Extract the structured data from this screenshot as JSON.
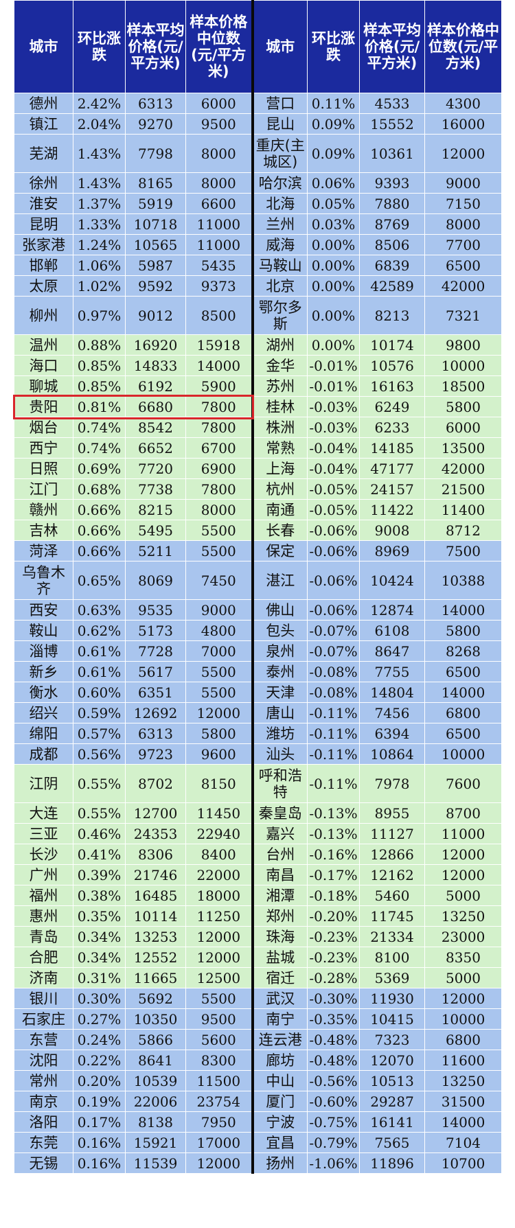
{
  "headers": [
    "城市",
    "环比涨跌",
    "样本平均价格(元/平方米)",
    "样本价格中位数(元/平方米)",
    "城市",
    "环比涨跌",
    "样本平均价格(元/平方米)",
    "样本价格中位数(元/平方米)"
  ],
  "colors": {
    "header": "#1b2a9e",
    "band_blue": "#a9c5ee",
    "band_green": "#d3f1cb",
    "highlight": "#d9262b"
  },
  "highlighted_city": "贵阳",
  "rows": [
    {
      "band": "blue",
      "l": [
        "德州",
        "2.42%",
        "6313",
        "6000"
      ],
      "r": [
        "营口",
        "0.11%",
        "4533",
        "4300"
      ]
    },
    {
      "band": "blue",
      "l": [
        "镇江",
        "2.04%",
        "9270",
        "9500"
      ],
      "r": [
        "昆山",
        "0.09%",
        "15552",
        "16000"
      ]
    },
    {
      "band": "blue",
      "tall": true,
      "l": [
        "芜湖",
        "1.43%",
        "7798",
        "8000"
      ],
      "r": [
        "重庆(主城区)",
        "0.09%",
        "10361",
        "12000"
      ]
    },
    {
      "band": "blue",
      "l": [
        "徐州",
        "1.43%",
        "8165",
        "8000"
      ],
      "r": [
        "哈尔滨",
        "0.06%",
        "9393",
        "9000"
      ]
    },
    {
      "band": "blue",
      "l": [
        "淮安",
        "1.37%",
        "5919",
        "6600"
      ],
      "r": [
        "北海",
        "0.05%",
        "7880",
        "7150"
      ]
    },
    {
      "band": "blue",
      "l": [
        "昆明",
        "1.33%",
        "10718",
        "11000"
      ],
      "r": [
        "兰州",
        "0.03%",
        "8769",
        "8000"
      ]
    },
    {
      "band": "blue",
      "l": [
        "张家港",
        "1.24%",
        "10565",
        "11000"
      ],
      "r": [
        "威海",
        "0.00%",
        "8506",
        "7700"
      ]
    },
    {
      "band": "blue",
      "l": [
        "邯郸",
        "1.06%",
        "5987",
        "5435"
      ],
      "r": [
        "马鞍山",
        "0.00%",
        "6839",
        "6500"
      ]
    },
    {
      "band": "blue",
      "l": [
        "太原",
        "1.02%",
        "9592",
        "9373"
      ],
      "r": [
        "北京",
        "0.00%",
        "42589",
        "42000"
      ]
    },
    {
      "band": "blue",
      "tall": true,
      "l": [
        "柳州",
        "0.97%",
        "9012",
        "8500"
      ],
      "r": [
        "鄂尔多斯",
        "0.00%",
        "8213",
        "7321"
      ]
    },
    {
      "band": "green",
      "l": [
        "温州",
        "0.88%",
        "16920",
        "15918"
      ],
      "r": [
        "湖州",
        "0.00%",
        "10174",
        "9800"
      ]
    },
    {
      "band": "green",
      "l": [
        "海口",
        "0.85%",
        "14833",
        "14000"
      ],
      "r": [
        "金华",
        "-0.01%",
        "10576",
        "10000"
      ]
    },
    {
      "band": "green",
      "l": [
        "聊城",
        "0.85%",
        "6192",
        "5900"
      ],
      "r": [
        "苏州",
        "-0.01%",
        "16163",
        "18500"
      ]
    },
    {
      "band": "green",
      "l": [
        "贵阳",
        "0.81%",
        "6680",
        "7800"
      ],
      "r": [
        "桂林",
        "-0.03%",
        "6249",
        "5800"
      ]
    },
    {
      "band": "green",
      "l": [
        "烟台",
        "0.74%",
        "8542",
        "7800"
      ],
      "r": [
        "株洲",
        "-0.03%",
        "6233",
        "6000"
      ]
    },
    {
      "band": "green",
      "l": [
        "西宁",
        "0.74%",
        "6652",
        "6700"
      ],
      "r": [
        "常熟",
        "-0.04%",
        "14185",
        "13500"
      ]
    },
    {
      "band": "green",
      "l": [
        "日照",
        "0.69%",
        "7720",
        "6900"
      ],
      "r": [
        "上海",
        "-0.04%",
        "47177",
        "42000"
      ]
    },
    {
      "band": "green",
      "l": [
        "江门",
        "0.68%",
        "7738",
        "7800"
      ],
      "r": [
        "杭州",
        "-0.05%",
        "24157",
        "21500"
      ]
    },
    {
      "band": "green",
      "l": [
        "赣州",
        "0.66%",
        "8215",
        "8000"
      ],
      "r": [
        "南通",
        "-0.05%",
        "11422",
        "11400"
      ]
    },
    {
      "band": "green",
      "l": [
        "吉林",
        "0.66%",
        "5495",
        "5500"
      ],
      "r": [
        "长春",
        "-0.06%",
        "9008",
        "8712"
      ]
    },
    {
      "band": "blue",
      "l": [
        "菏泽",
        "0.66%",
        "5211",
        "5500"
      ],
      "r": [
        "保定",
        "-0.06%",
        "8969",
        "7500"
      ]
    },
    {
      "band": "blue",
      "tall": true,
      "l": [
        "乌鲁木齐",
        "0.65%",
        "8069",
        "7450"
      ],
      "r": [
        "湛江",
        "-0.06%",
        "10424",
        "10388"
      ]
    },
    {
      "band": "blue",
      "l": [
        "西安",
        "0.63%",
        "9535",
        "9000"
      ],
      "r": [
        "佛山",
        "-0.06%",
        "12874",
        "14000"
      ]
    },
    {
      "band": "blue",
      "l": [
        "鞍山",
        "0.62%",
        "5173",
        "4800"
      ],
      "r": [
        "包头",
        "-0.07%",
        "6108",
        "5800"
      ]
    },
    {
      "band": "blue",
      "l": [
        "淄博",
        "0.61%",
        "7728",
        "7000"
      ],
      "r": [
        "泉州",
        "-0.07%",
        "8647",
        "8268"
      ]
    },
    {
      "band": "blue",
      "l": [
        "新乡",
        "0.61%",
        "5617",
        "5500"
      ],
      "r": [
        "泰州",
        "-0.08%",
        "7755",
        "6500"
      ]
    },
    {
      "band": "blue",
      "l": [
        "衡水",
        "0.60%",
        "6351",
        "5500"
      ],
      "r": [
        "天津",
        "-0.08%",
        "14804",
        "14000"
      ]
    },
    {
      "band": "blue",
      "l": [
        "绍兴",
        "0.59%",
        "12692",
        "12000"
      ],
      "r": [
        "唐山",
        "-0.11%",
        "7456",
        "6800"
      ]
    },
    {
      "band": "blue",
      "l": [
        "绵阳",
        "0.57%",
        "6313",
        "5800"
      ],
      "r": [
        "潍坊",
        "-0.11%",
        "6394",
        "6500"
      ]
    },
    {
      "band": "blue",
      "l": [
        "成都",
        "0.56%",
        "9723",
        "9600"
      ],
      "r": [
        "汕头",
        "-0.11%",
        "10864",
        "10000"
      ]
    },
    {
      "band": "green",
      "tall": true,
      "l": [
        "江阴",
        "0.55%",
        "8702",
        "8150"
      ],
      "r": [
        "呼和浩特",
        "-0.11%",
        "7978",
        "7600"
      ]
    },
    {
      "band": "green",
      "l": [
        "大连",
        "0.55%",
        "12700",
        "11450"
      ],
      "r": [
        "秦皇岛",
        "-0.13%",
        "8955",
        "8700"
      ]
    },
    {
      "band": "green",
      "l": [
        "三亚",
        "0.46%",
        "24353",
        "22940"
      ],
      "r": [
        "嘉兴",
        "-0.13%",
        "11127",
        "11000"
      ]
    },
    {
      "band": "green",
      "l": [
        "长沙",
        "0.41%",
        "8306",
        "8400"
      ],
      "r": [
        "台州",
        "-0.16%",
        "12866",
        "12000"
      ]
    },
    {
      "band": "green",
      "l": [
        "广州",
        "0.39%",
        "21746",
        "22000"
      ],
      "r": [
        "南昌",
        "-0.17%",
        "12162",
        "12000"
      ]
    },
    {
      "band": "green",
      "l": [
        "福州",
        "0.38%",
        "16485",
        "18000"
      ],
      "r": [
        "湘潭",
        "-0.18%",
        "5460",
        "5000"
      ]
    },
    {
      "band": "green",
      "l": [
        "惠州",
        "0.35%",
        "10114",
        "11250"
      ],
      "r": [
        "郑州",
        "-0.20%",
        "11745",
        "13250"
      ]
    },
    {
      "band": "green",
      "l": [
        "青岛",
        "0.34%",
        "13253",
        "12000"
      ],
      "r": [
        "珠海",
        "-0.23%",
        "21334",
        "23000"
      ]
    },
    {
      "band": "green",
      "l": [
        "合肥",
        "0.34%",
        "12552",
        "12000"
      ],
      "r": [
        "盐城",
        "-0.23%",
        "8100",
        "8350"
      ]
    },
    {
      "band": "green",
      "l": [
        "济南",
        "0.31%",
        "11665",
        "12500"
      ],
      "r": [
        "宿迁",
        "-0.28%",
        "5369",
        "5000"
      ]
    },
    {
      "band": "blue",
      "l": [
        "银川",
        "0.30%",
        "5692",
        "5500"
      ],
      "r": [
        "武汉",
        "-0.30%",
        "11930",
        "12000"
      ]
    },
    {
      "band": "blue",
      "l": [
        "石家庄",
        "0.27%",
        "10350",
        "9500"
      ],
      "r": [
        "南宁",
        "-0.35%",
        "10415",
        "10000"
      ]
    },
    {
      "band": "blue",
      "l": [
        "东营",
        "0.24%",
        "5866",
        "5600"
      ],
      "r": [
        "连云港",
        "-0.48%",
        "7323",
        "6800"
      ]
    },
    {
      "band": "blue",
      "l": [
        "沈阳",
        "0.22%",
        "8641",
        "8300"
      ],
      "r": [
        "廊坊",
        "-0.48%",
        "12070",
        "11600"
      ]
    },
    {
      "band": "blue",
      "l": [
        "常州",
        "0.20%",
        "10539",
        "11500"
      ],
      "r": [
        "中山",
        "-0.56%",
        "10513",
        "13250"
      ]
    },
    {
      "band": "blue",
      "l": [
        "南京",
        "0.19%",
        "22006",
        "23754"
      ],
      "r": [
        "厦门",
        "-0.60%",
        "29287",
        "31500"
      ]
    },
    {
      "band": "blue",
      "l": [
        "洛阳",
        "0.17%",
        "8138",
        "7950"
      ],
      "r": [
        "宁波",
        "-0.75%",
        "16141",
        "14000"
      ]
    },
    {
      "band": "blue",
      "l": [
        "东莞",
        "0.16%",
        "15921",
        "17000"
      ],
      "r": [
        "宜昌",
        "-0.79%",
        "7565",
        "7104"
      ]
    },
    {
      "band": "blue",
      "l": [
        "无锡",
        "0.16%",
        "11539",
        "12000"
      ],
      "r": [
        "扬州",
        "-1.06%",
        "11896",
        "10700"
      ]
    }
  ]
}
